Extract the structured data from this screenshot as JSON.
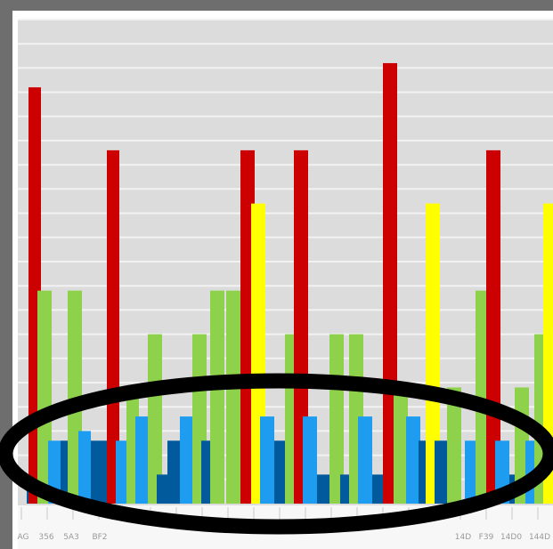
{
  "colors": {
    "frame": "#6e6e6e",
    "plot_bg": "#dcdcdc",
    "grid": "#f2f2f2",
    "axis_strip": "#f7f7f7",
    "highlight": "#000000"
  },
  "chart_data": {
    "type": "bar",
    "title": "",
    "xlabel": "",
    "ylabel": "",
    "ylim": [
      0,
      100
    ],
    "grid": true,
    "legend": "none",
    "tick_labels": [
      {
        "label": "AG",
        "group": 0
      },
      {
        "label": "356",
        "group": 1
      },
      {
        "label": "5A3",
        "group": 2
      },
      {
        "label": "BF2",
        "group": 3
      },
      {
        "label": "14D",
        "group": 15
      },
      {
        "label": "F39",
        "group": 16
      },
      {
        "label": "14D0",
        "group": 17
      },
      {
        "label": "144D",
        "group": 18
      }
    ],
    "series": [
      {
        "color": "#cc0000",
        "values": [
          86,
          0,
          0,
          0,
          0,
          0,
          0,
          0,
          0,
          0,
          0,
          0,
          0,
          0,
          0,
          0,
          0,
          0,
          0
        ]
      },
      {
        "color": "#8ed14a",
        "values": [
          40,
          40,
          0,
          0,
          0,
          0,
          0,
          0,
          0,
          0,
          0,
          0,
          0,
          0,
          0,
          0,
          0,
          0,
          0
        ]
      },
      {
        "color": "#1e9cf0",
        "values": [
          0,
          13,
          15,
          0,
          0,
          0,
          0,
          0,
          0,
          0,
          0,
          0,
          0,
          0,
          0,
          0,
          0,
          0,
          0
        ]
      },
      {
        "color": "#005a9c",
        "values": [
          4,
          13,
          13,
          13,
          0,
          0,
          0,
          0,
          0,
          0,
          0,
          0,
          0,
          0,
          0,
          0,
          0,
          0,
          0
        ]
      }
    ],
    "bars": [
      {
        "x": 30,
        "w": 16,
        "value": 4,
        "color": "#005a9c"
      },
      {
        "x": 32,
        "w": 14,
        "value": 86,
        "color": "#cc0000"
      },
      {
        "x": 42,
        "w": 16,
        "value": 44,
        "color": "#8ed14a"
      },
      {
        "x": 54,
        "w": 14,
        "value": 13,
        "color": "#1e9cf0"
      },
      {
        "x": 68,
        "w": 12,
        "value": 13,
        "color": "#005a9c"
      },
      {
        "x": 76,
        "w": 16,
        "value": 44,
        "color": "#8ed14a"
      },
      {
        "x": 88,
        "w": 14,
        "value": 15,
        "color": "#1e9cf0"
      },
      {
        "x": 102,
        "w": 22,
        "value": 13,
        "color": "#005a9c"
      },
      {
        "x": 120,
        "w": 14,
        "value": 73,
        "color": "#cc0000"
      },
      {
        "x": 130,
        "w": 12,
        "value": 13,
        "color": "#1e9cf0"
      },
      {
        "x": 142,
        "w": 14,
        "value": 24,
        "color": "#8ed14a"
      },
      {
        "x": 152,
        "w": 16,
        "value": 18,
        "color": "#1e9cf0"
      },
      {
        "x": 166,
        "w": 16,
        "value": 35,
        "color": "#8ed14a"
      },
      {
        "x": 176,
        "w": 14,
        "value": 6,
        "color": "#005a9c"
      },
      {
        "x": 188,
        "w": 14,
        "value": 13,
        "color": "#005a9c"
      },
      {
        "x": 202,
        "w": 16,
        "value": 18,
        "color": "#1e9cf0"
      },
      {
        "x": 216,
        "w": 16,
        "value": 35,
        "color": "#8ed14a"
      },
      {
        "x": 226,
        "w": 14,
        "value": 13,
        "color": "#005a9c"
      },
      {
        "x": 236,
        "w": 16,
        "value": 44,
        "color": "#8ed14a"
      },
      {
        "x": 254,
        "w": 16,
        "value": 44,
        "color": "#8ed14a"
      },
      {
        "x": 270,
        "w": 16,
        "value": 73,
        "color": "#cc0000"
      },
      {
        "x": 282,
        "w": 16,
        "value": 62,
        "color": "#ffff00"
      },
      {
        "x": 292,
        "w": 16,
        "value": 18,
        "color": "#1e9cf0"
      },
      {
        "x": 308,
        "w": 14,
        "value": 13,
        "color": "#005a9c"
      },
      {
        "x": 320,
        "w": 16,
        "value": 35,
        "color": "#8ed14a"
      },
      {
        "x": 330,
        "w": 16,
        "value": 73,
        "color": "#cc0000"
      },
      {
        "x": 340,
        "w": 16,
        "value": 18,
        "color": "#1e9cf0"
      },
      {
        "x": 356,
        "w": 16,
        "value": 6,
        "color": "#005a9c"
      },
      {
        "x": 370,
        "w": 16,
        "value": 35,
        "color": "#8ed14a"
      },
      {
        "x": 382,
        "w": 16,
        "value": 6,
        "color": "#005a9c"
      },
      {
        "x": 392,
        "w": 16,
        "value": 35,
        "color": "#8ed14a"
      },
      {
        "x": 402,
        "w": 16,
        "value": 18,
        "color": "#1e9cf0"
      },
      {
        "x": 418,
        "w": 12,
        "value": 6,
        "color": "#005a9c"
      },
      {
        "x": 430,
        "w": 16,
        "value": 91,
        "color": "#cc0000"
      },
      {
        "x": 442,
        "w": 16,
        "value": 24,
        "color": "#8ed14a"
      },
      {
        "x": 456,
        "w": 16,
        "value": 18,
        "color": "#1e9cf0"
      },
      {
        "x": 470,
        "w": 14,
        "value": 13,
        "color": "#005a9c"
      },
      {
        "x": 478,
        "w": 16,
        "value": 62,
        "color": "#ffff00"
      },
      {
        "x": 488,
        "w": 16,
        "value": 13,
        "color": "#005a9c"
      },
      {
        "x": 502,
        "w": 16,
        "value": 24,
        "color": "#8ed14a"
      },
      {
        "x": 522,
        "w": 16,
        "value": 13,
        "color": "#1e9cf0"
      },
      {
        "x": 534,
        "w": 16,
        "value": 44,
        "color": "#8ed14a"
      },
      {
        "x": 546,
        "w": 16,
        "value": 73,
        "color": "#cc0000"
      },
      {
        "x": 556,
        "w": 16,
        "value": 13,
        "color": "#1e9cf0"
      },
      {
        "x": 572,
        "w": 12,
        "value": 6,
        "color": "#005a9c"
      },
      {
        "x": 578,
        "w": 16,
        "value": 24,
        "color": "#8ed14a"
      },
      {
        "x": 590,
        "w": 16,
        "value": 13,
        "color": "#1e9cf0"
      },
      {
        "x": 600,
        "w": 12,
        "value": 35,
        "color": "#8ed14a"
      },
      {
        "x": 610,
        "w": 11,
        "value": 62,
        "color": "#ffff00"
      }
    ],
    "annotations": [
      {
        "type": "ellipse",
        "description": "black oval highlighting the short blue bars at the bottom"
      }
    ]
  }
}
